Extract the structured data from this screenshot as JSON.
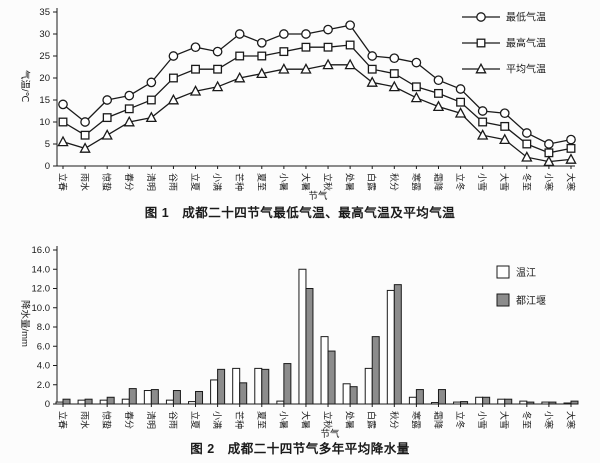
{
  "colors": {
    "ink": "#1a1a1a",
    "bar_gray": "#8c8c8c",
    "bar_white": "#ffffff",
    "background": "#fcfcfc"
  },
  "chart_data": [
    {
      "type": "line",
      "title": "图 1　成都二十四节气最低气温、最高气温及平均气温",
      "xlabel": "节气",
      "ylabel": "气温/℃",
      "ylim": [
        0,
        35
      ],
      "ytick_step": 5,
      "grid": false,
      "legend_position": "top-right",
      "categories": [
        "立春",
        "雨水",
        "惊蛰",
        "春分",
        "清明",
        "谷雨",
        "立夏",
        "小满",
        "芒种",
        "夏至",
        "小暑",
        "大暑",
        "立秋",
        "处暑",
        "白露",
        "秋分",
        "寒露",
        "霜降",
        "立冬",
        "小雪",
        "大雪",
        "冬至",
        "小寒",
        "大寒"
      ],
      "series": [
        {
          "name": "最低气温",
          "marker": "circle",
          "values": [
            14,
            10,
            15,
            16,
            19,
            25,
            27,
            26,
            30,
            28,
            30,
            30,
            31,
            32,
            25,
            24.5,
            23.5,
            19.5,
            17.5,
            12.5,
            12,
            7.5,
            5,
            6
          ]
        },
        {
          "name": "最高气温",
          "marker": "square",
          "values": [
            10,
            7,
            11,
            13,
            15,
            20,
            22,
            22,
            25,
            25,
            26,
            27,
            27,
            27.5,
            22,
            21,
            18,
            16.5,
            14.5,
            10,
            9,
            5,
            3,
            4
          ]
        },
        {
          "name": "平均气温",
          "marker": "triangle",
          "values": [
            5.5,
            4,
            7,
            10,
            11,
            15,
            17,
            18,
            20,
            21,
            22,
            22,
            23,
            23,
            19,
            18,
            15.5,
            13.5,
            12,
            7,
            6,
            2,
            1,
            1.5
          ]
        }
      ]
    },
    {
      "type": "bar",
      "title": "图 2　成都二十四节气多年平均降水量",
      "xlabel": "节气",
      "ylabel": "降水量/mm",
      "ylim": [
        0,
        16
      ],
      "ytick_step": 2,
      "grid": false,
      "legend_position": "right",
      "categories": [
        "立春",
        "雨水",
        "惊蛰",
        "春分",
        "清明",
        "谷雨",
        "立夏",
        "小满",
        "芒种",
        "夏至",
        "小暑",
        "大暑",
        "立秋",
        "处暑",
        "白露",
        "秋分",
        "寒露",
        "霜降",
        "立冬",
        "小雪",
        "大雪",
        "冬至",
        "小寒",
        "大寒"
      ],
      "series": [
        {
          "name": "温江",
          "fill": "#ffffff",
          "values": [
            0.2,
            0.4,
            0.4,
            0.5,
            1.4,
            0.4,
            0.25,
            2.5,
            3.7,
            3.7,
            0.3,
            14,
            7,
            2.1,
            3.7,
            11.8,
            0.7,
            0.15,
            0.2,
            0.7,
            0.5,
            0.3,
            0.2,
            0.1
          ]
        },
        {
          "name": "都江堰",
          "fill": "#8c8c8c",
          "values": [
            0.5,
            0.5,
            0.7,
            1.6,
            1.5,
            1.4,
            1.3,
            3.6,
            2.2,
            3.6,
            4.2,
            12,
            5.5,
            1.8,
            7,
            12.4,
            1.5,
            1.5,
            0.25,
            0.7,
            0.5,
            0.2,
            0.2,
            0.3
          ]
        }
      ]
    }
  ]
}
